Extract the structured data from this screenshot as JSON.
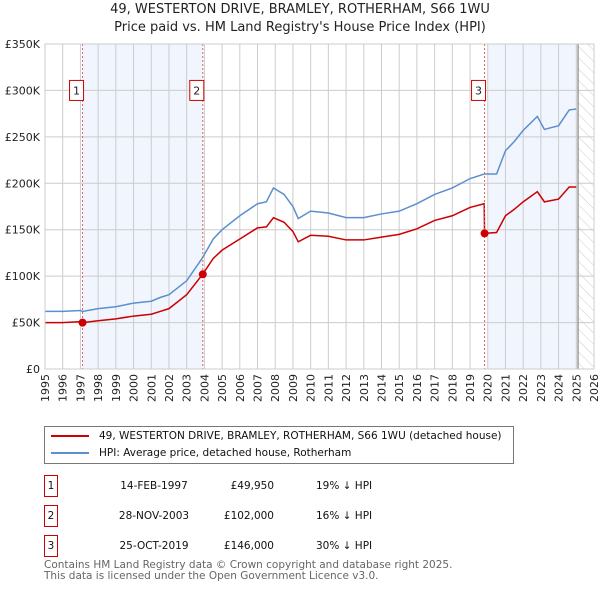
{
  "chart_data": {
    "type": "line",
    "title": "49, WESTERTON DRIVE, BRAMLEY, ROTHERHAM, S66 1WU",
    "subtitle": "Price paid vs. HM Land Registry's House Price Index (HPI)",
    "xlabel": "",
    "ylabel": "",
    "xlim": [
      1995,
      2026
    ],
    "ylim": [
      0,
      350000
    ],
    "x_ticks": [
      "1995",
      "1996",
      "1997",
      "1998",
      "1999",
      "2000",
      "2001",
      "2002",
      "2003",
      "2004",
      "2005",
      "2006",
      "2007",
      "2008",
      "2009",
      "2010",
      "2011",
      "2012",
      "2013",
      "2014",
      "2015",
      "2016",
      "2017",
      "2018",
      "2019",
      "2020",
      "2021",
      "2022",
      "2023",
      "2024",
      "2025",
      "2026"
    ],
    "y_ticks": [
      {
        "v": 0,
        "label": "£0"
      },
      {
        "v": 50000,
        "label": "£50K"
      },
      {
        "v": 100000,
        "label": "£100K"
      },
      {
        "v": 150000,
        "label": "£150K"
      },
      {
        "v": 200000,
        "label": "£200K"
      },
      {
        "v": 250000,
        "label": "£250K"
      },
      {
        "v": 300000,
        "label": "£300K"
      },
      {
        "v": 350000,
        "label": "£350K"
      }
    ],
    "grid": true,
    "x": [
      1995,
      1996,
      1997,
      1997.12,
      1998,
      1999,
      2000,
      2001,
      2001.5,
      2002,
      2003,
      2003.9,
      2004.5,
      2005,
      2006,
      2007,
      2007.5,
      2007.9,
      2008.5,
      2009,
      2009.3,
      2010,
      2011,
      2012,
      2013,
      2014,
      2015,
      2016,
      2017,
      2018,
      2019,
      2019.8,
      2019.82,
      2020.5,
      2021,
      2021.5,
      2022,
      2022.8,
      2023.2,
      2024,
      2024.6,
      2025
    ],
    "series": [
      {
        "name": "49, WESTERTON DRIVE, BRAMLEY, ROTHERHAM, S66 1WU (detached house)",
        "color": "#cc0000",
        "values": [
          50000,
          50000,
          51000,
          49950,
          52000,
          54000,
          57000,
          59000,
          62000,
          65000,
          80000,
          102000,
          119000,
          128000,
          140000,
          152000,
          153000,
          163000,
          158000,
          148000,
          137000,
          144000,
          143000,
          139000,
          139000,
          142000,
          145000,
          151000,
          160000,
          165000,
          174000,
          178000,
          146000,
          147000,
          165000,
          172000,
          180000,
          191000,
          180000,
          183000,
          196000,
          196000
        ]
      },
      {
        "name": "HPI: Average price, detached house, Rotherham",
        "color": "#5b8fd0",
        "values": [
          62000,
          62000,
          63000,
          62000,
          65000,
          67000,
          71000,
          73000,
          77000,
          80000,
          95000,
          120000,
          140000,
          150000,
          165000,
          178000,
          180000,
          195000,
          188000,
          175000,
          162000,
          170000,
          168000,
          163000,
          163000,
          167000,
          170000,
          178000,
          188000,
          195000,
          205000,
          210000,
          210000,
          210000,
          235000,
          245000,
          257000,
          272000,
          258000,
          262000,
          279000,
          280000
        ]
      }
    ],
    "sales": [
      {
        "label": "1",
        "x": 1997.12,
        "value": 49950,
        "date": "14-FEB-1997",
        "price": "£49,950",
        "hpi": "19% ↓ HPI"
      },
      {
        "label": "2",
        "x": 2003.91,
        "value": 102000,
        "date": "28-NOV-2003",
        "price": "£102,000",
        "hpi": "16% ↓ HPI"
      },
      {
        "label": "3",
        "x": 2019.82,
        "value": 146000,
        "date": "25-OCT-2019",
        "price": "£146,000",
        "hpi": "30% ↓ HPI"
      }
    ],
    "shaded_ranges": [
      [
        1997.12,
        2003.91
      ],
      [
        2020,
        2025.1
      ]
    ],
    "forecast_from": 2025.1,
    "legend_placement": "bottom"
  },
  "footer": {
    "line1": "Contains HM Land Registry data © Crown copyright and database right 2025.",
    "line2": "This data is licensed under the Open Government Licence v3.0."
  }
}
